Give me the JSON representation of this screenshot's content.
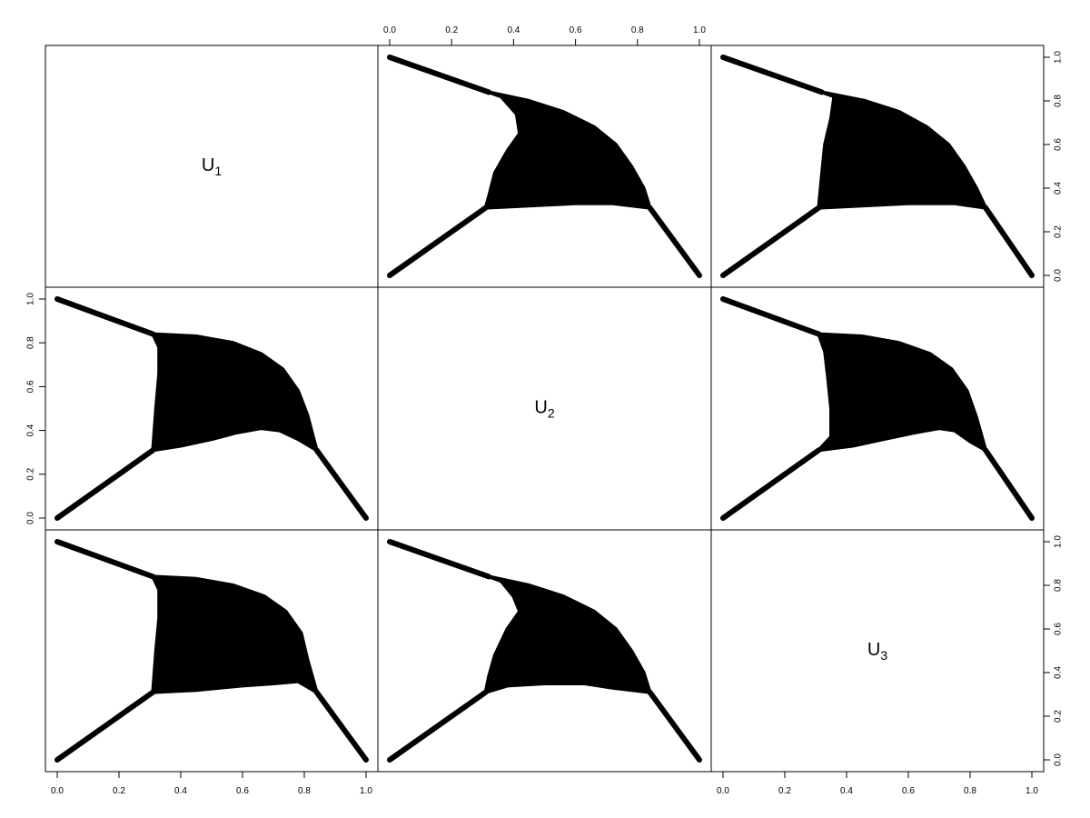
{
  "chart_data": {
    "type": "scatter",
    "layout": "pairs-matrix",
    "variables": [
      {
        "label": "U",
        "subscript": "1"
      },
      {
        "label": "U",
        "subscript": "2"
      },
      {
        "label": "U",
        "subscript": "3"
      }
    ],
    "axis_range": [
      0,
      1
    ],
    "ticks": [
      0.0,
      0.2,
      0.4,
      0.6,
      0.8,
      1.0
    ],
    "tick_labels": [
      "0.0",
      "0.2",
      "0.4",
      "0.6",
      "0.8",
      "1.0"
    ],
    "grid": false,
    "mark_color": "#000000",
    "panels": [
      {
        "row": 1,
        "col": 2,
        "x_var": "U2",
        "y_var": "U1",
        "tail_lines": [
          [
            [
              0,
              0
            ],
            [
              0.31,
              0.31
            ]
          ],
          [
            [
              0,
              1
            ],
            [
              0.32,
              0.84
            ]
          ],
          [
            [
              0.84,
              0.31
            ],
            [
              1,
              0
            ]
          ]
        ],
        "region": [
          [
            0.32,
            0.84
          ],
          [
            0.36,
            0.82
          ],
          [
            0.41,
            0.74
          ],
          [
            0.42,
            0.65
          ],
          [
            0.38,
            0.57
          ],
          [
            0.34,
            0.47
          ],
          [
            0.32,
            0.36
          ],
          [
            0.31,
            0.31
          ],
          [
            0.45,
            0.32
          ],
          [
            0.6,
            0.33
          ],
          [
            0.72,
            0.33
          ],
          [
            0.84,
            0.31
          ],
          [
            0.82,
            0.4
          ],
          [
            0.78,
            0.5
          ],
          [
            0.73,
            0.6
          ],
          [
            0.66,
            0.68
          ],
          [
            0.56,
            0.75
          ],
          [
            0.45,
            0.8
          ]
        ]
      },
      {
        "row": 1,
        "col": 3,
        "x_var": "U3",
        "y_var": "U1",
        "tail_lines": [
          [
            [
              0,
              0
            ],
            [
              0.31,
              0.31
            ]
          ],
          [
            [
              0,
              1
            ],
            [
              0.32,
              0.84
            ]
          ],
          [
            [
              0.85,
              0.31
            ],
            [
              1,
              0
            ]
          ]
        ],
        "region": [
          [
            0.32,
            0.84
          ],
          [
            0.36,
            0.82
          ],
          [
            0.35,
            0.72
          ],
          [
            0.33,
            0.6
          ],
          [
            0.32,
            0.46
          ],
          [
            0.31,
            0.31
          ],
          [
            0.45,
            0.32
          ],
          [
            0.6,
            0.33
          ],
          [
            0.75,
            0.33
          ],
          [
            0.85,
            0.31
          ],
          [
            0.82,
            0.4
          ],
          [
            0.78,
            0.5
          ],
          [
            0.73,
            0.6
          ],
          [
            0.66,
            0.68
          ],
          [
            0.57,
            0.75
          ],
          [
            0.46,
            0.8
          ]
        ]
      },
      {
        "row": 2,
        "col": 1,
        "x_var": "U1",
        "y_var": "U2",
        "tail_lines": [
          [
            [
              0,
              0
            ],
            [
              0.31,
              0.31
            ]
          ],
          [
            [
              0,
              1
            ],
            [
              0.31,
              0.84
            ]
          ],
          [
            [
              0.84,
              0.31
            ],
            [
              1,
              0
            ]
          ]
        ],
        "region": [
          [
            0.31,
            0.84
          ],
          [
            0.45,
            0.83
          ],
          [
            0.57,
            0.8
          ],
          [
            0.66,
            0.75
          ],
          [
            0.73,
            0.68
          ],
          [
            0.78,
            0.58
          ],
          [
            0.81,
            0.47
          ],
          [
            0.84,
            0.31
          ],
          [
            0.78,
            0.36
          ],
          [
            0.72,
            0.4
          ],
          [
            0.66,
            0.41
          ],
          [
            0.58,
            0.39
          ],
          [
            0.5,
            0.36
          ],
          [
            0.4,
            0.33
          ],
          [
            0.31,
            0.31
          ],
          [
            0.32,
            0.5
          ],
          [
            0.33,
            0.66
          ],
          [
            0.33,
            0.78
          ]
        ]
      },
      {
        "row": 2,
        "col": 3,
        "x_var": "U3",
        "y_var": "U2",
        "tail_lines": [
          [
            [
              0,
              0
            ],
            [
              0.31,
              0.31
            ]
          ],
          [
            [
              0,
              1
            ],
            [
              0.31,
              0.84
            ]
          ],
          [
            [
              0.85,
              0.31
            ],
            [
              1,
              0
            ]
          ]
        ],
        "region": [
          [
            0.31,
            0.84
          ],
          [
            0.45,
            0.83
          ],
          [
            0.57,
            0.8
          ],
          [
            0.67,
            0.75
          ],
          [
            0.74,
            0.68
          ],
          [
            0.79,
            0.58
          ],
          [
            0.82,
            0.46
          ],
          [
            0.85,
            0.31
          ],
          [
            0.8,
            0.35
          ],
          [
            0.75,
            0.4
          ],
          [
            0.7,
            0.41
          ],
          [
            0.62,
            0.39
          ],
          [
            0.52,
            0.36
          ],
          [
            0.42,
            0.33
          ],
          [
            0.31,
            0.31
          ],
          [
            0.35,
            0.37
          ],
          [
            0.35,
            0.5
          ],
          [
            0.34,
            0.64
          ],
          [
            0.33,
            0.76
          ]
        ]
      },
      {
        "row": 3,
        "col": 1,
        "x_var": "U1",
        "y_var": "U3",
        "tail_lines": [
          [
            [
              0,
              0
            ],
            [
              0.31,
              0.31
            ]
          ],
          [
            [
              0,
              1
            ],
            [
              0.31,
              0.84
            ]
          ],
          [
            [
              0.84,
              0.31
            ],
            [
              1,
              0
            ]
          ]
        ],
        "region": [
          [
            0.31,
            0.84
          ],
          [
            0.45,
            0.83
          ],
          [
            0.57,
            0.8
          ],
          [
            0.67,
            0.75
          ],
          [
            0.74,
            0.68
          ],
          [
            0.79,
            0.58
          ],
          [
            0.81,
            0.46
          ],
          [
            0.83,
            0.36
          ],
          [
            0.84,
            0.31
          ],
          [
            0.78,
            0.36
          ],
          [
            0.7,
            0.35
          ],
          [
            0.6,
            0.34
          ],
          [
            0.45,
            0.32
          ],
          [
            0.31,
            0.31
          ],
          [
            0.32,
            0.5
          ],
          [
            0.33,
            0.65
          ],
          [
            0.33,
            0.78
          ]
        ]
      },
      {
        "row": 3,
        "col": 2,
        "x_var": "U2",
        "y_var": "U3",
        "tail_lines": [
          [
            [
              0,
              0
            ],
            [
              0.31,
              0.31
            ]
          ],
          [
            [
              0,
              1
            ],
            [
              0.32,
              0.84
            ]
          ],
          [
            [
              0.84,
              0.31
            ],
            [
              1,
              0
            ]
          ]
        ],
        "region": [
          [
            0.32,
            0.84
          ],
          [
            0.36,
            0.82
          ],
          [
            0.4,
            0.75
          ],
          [
            0.42,
            0.68
          ],
          [
            0.38,
            0.6
          ],
          [
            0.34,
            0.48
          ],
          [
            0.32,
            0.38
          ],
          [
            0.31,
            0.31
          ],
          [
            0.38,
            0.34
          ],
          [
            0.5,
            0.35
          ],
          [
            0.63,
            0.35
          ],
          [
            0.72,
            0.33
          ],
          [
            0.84,
            0.31
          ],
          [
            0.82,
            0.4
          ],
          [
            0.78,
            0.5
          ],
          [
            0.73,
            0.6
          ],
          [
            0.66,
            0.68
          ],
          [
            0.56,
            0.75
          ],
          [
            0.45,
            0.8
          ]
        ]
      }
    ]
  }
}
